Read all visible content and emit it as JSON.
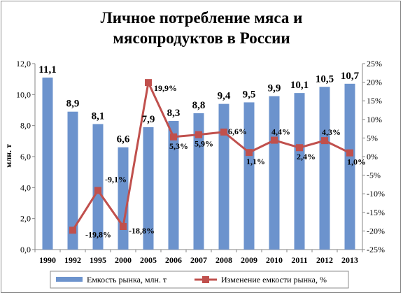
{
  "chart_data": {
    "type": "bar",
    "title_line1": "Личное потребление мяса и",
    "title_line2": "мясопродуктов в России",
    "ylabel": "млн. т",
    "categories": [
      "1990",
      "1992",
      "1995",
      "2000",
      "2005",
      "2006",
      "2007",
      "2008",
      "2009",
      "2010",
      "2011",
      "2012",
      "2013"
    ],
    "ylim": [
      0,
      12
    ],
    "y2lim": [
      -25,
      25
    ],
    "y_ticks": [
      "0,0",
      "2,0",
      "4,0",
      "6,0",
      "8,0",
      "10,0",
      "12,0"
    ],
    "y2_ticks": [
      "-25%",
      "-20%",
      "-15%",
      "-10%",
      "-5%",
      "0%",
      "5%",
      "10%",
      "15%",
      "20%",
      "25%"
    ],
    "series": [
      {
        "name": "Емкость рынка, млн. т",
        "kind": "bar",
        "color": "#6c93cd",
        "values": [
          11.1,
          8.9,
          8.1,
          6.6,
          7.9,
          8.3,
          8.8,
          9.4,
          9.5,
          9.9,
          10.1,
          10.5,
          10.7
        ],
        "labels": [
          "11,1",
          "8,9",
          "8,1",
          "6,6",
          "7,9",
          "8,3",
          "8,8",
          "9,4",
          "9,5",
          "9,9",
          "10,1",
          "10,5",
          "10,7"
        ]
      },
      {
        "name": "Изменение емкости рынка, %",
        "kind": "line",
        "axis": "right",
        "color": "#c0504d",
        "values": [
          null,
          -19.8,
          -9.1,
          -18.8,
          19.9,
          5.3,
          5.9,
          6.6,
          1.1,
          4.4,
          2.4,
          4.3,
          1.0
        ],
        "labels": [
          null,
          "-19,8%",
          "-9,1%",
          "-18,8%",
          "19,9%",
          "5,3%",
          "5,9%",
          "6,6%",
          "1,1%",
          "4,4%",
          "2,4%",
          "4,3%",
          "1,0%"
        ]
      }
    ],
    "grid": false,
    "legend_position": "bottom"
  }
}
